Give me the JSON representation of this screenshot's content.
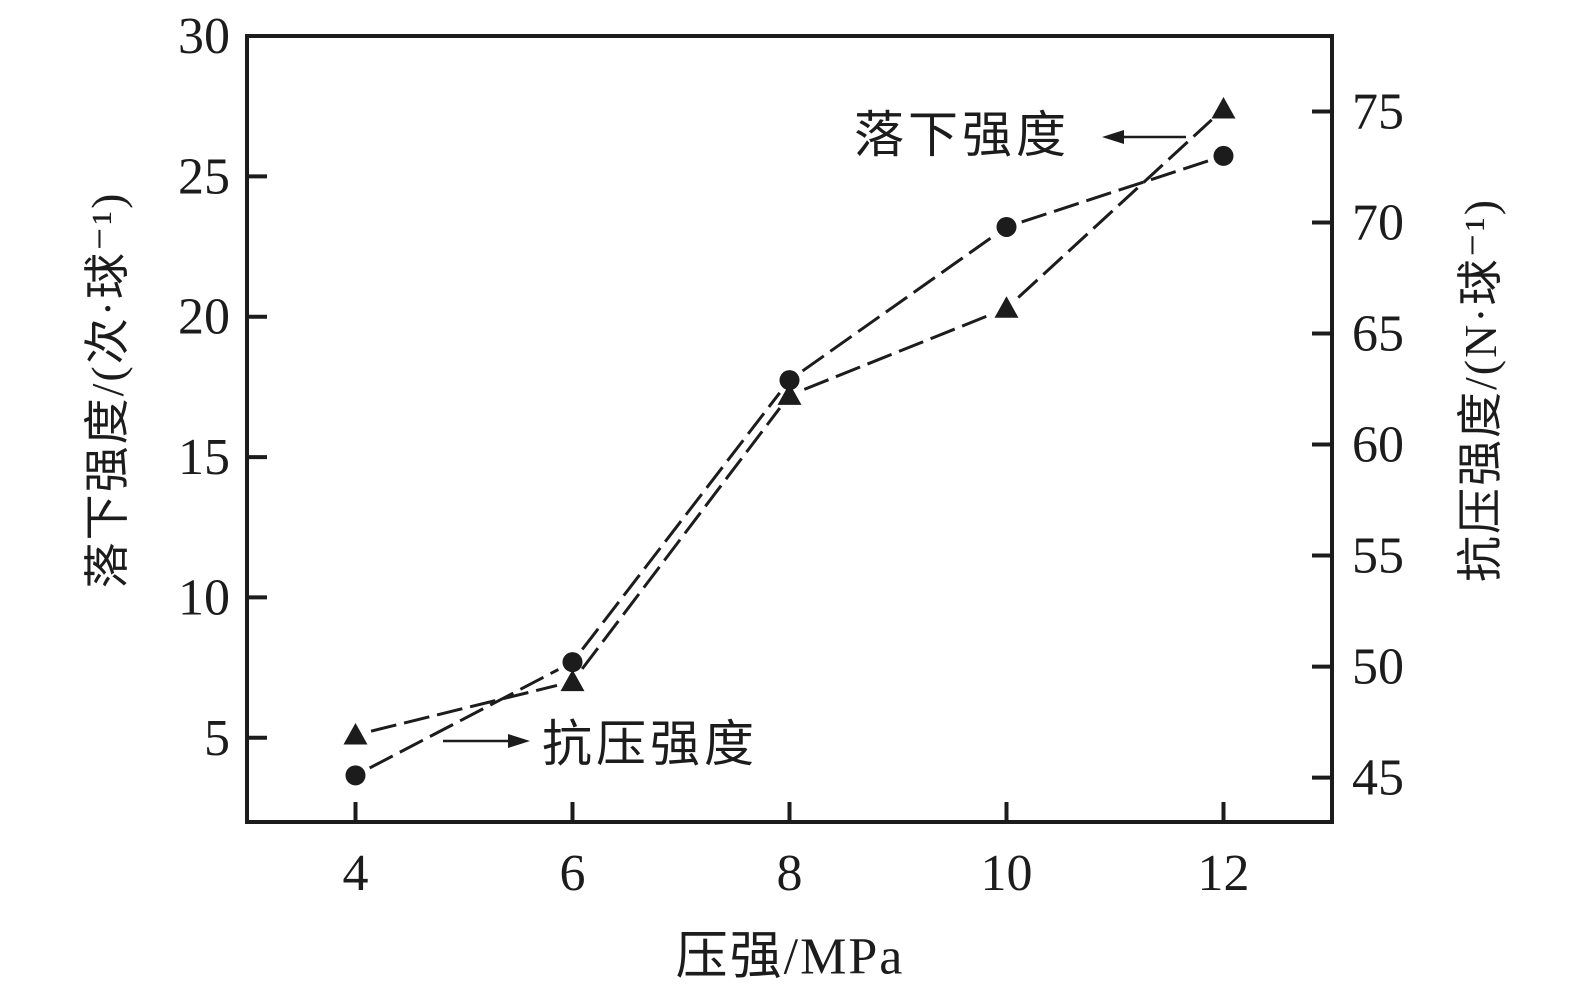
{
  "chart_data": {
    "type": "line",
    "title": "",
    "xlabel": "压强/MPa",
    "xlim": [
      3,
      13
    ],
    "x_ticks": [
      4,
      6,
      8,
      10,
      12
    ],
    "grid": false,
    "legend_position": "inline-annotations",
    "axes": {
      "left": {
        "label": "落下强度/(次·球⁻¹)",
        "lim": [
          2,
          30
        ],
        "ticks": [
          5,
          10,
          15,
          20,
          25,
          30
        ]
      },
      "right": {
        "label": "抗压强度/(N·球⁻¹)",
        "lim": [
          43,
          78.4
        ],
        "ticks": [
          45,
          50,
          55,
          60,
          65,
          70,
          75
        ]
      }
    },
    "series": [
      {
        "name": "落下强度",
        "key": "drop-strength",
        "axis": "left",
        "marker": "triangle",
        "x": [
          4,
          6,
          8,
          10,
          12
        ],
        "values": [
          5.1,
          7.0,
          17.2,
          20.3,
          27.4
        ]
      },
      {
        "name": "抗压强度",
        "key": "compressive-strength",
        "axis": "right",
        "marker": "circle",
        "x": [
          4,
          6,
          8,
          10,
          12
        ],
        "values": [
          45.1,
          50.2,
          62.9,
          69.8,
          73.0
        ]
      }
    ],
    "annotations": [
      {
        "text": "落下强度",
        "series": "drop-strength",
        "arrow_direction": "left"
      },
      {
        "text": "抗压强度",
        "series": "compressive-strength",
        "arrow_direction": "right"
      }
    ],
    "colors": {
      "foreground": "#1c1c1c",
      "background": "#ffffff"
    }
  }
}
